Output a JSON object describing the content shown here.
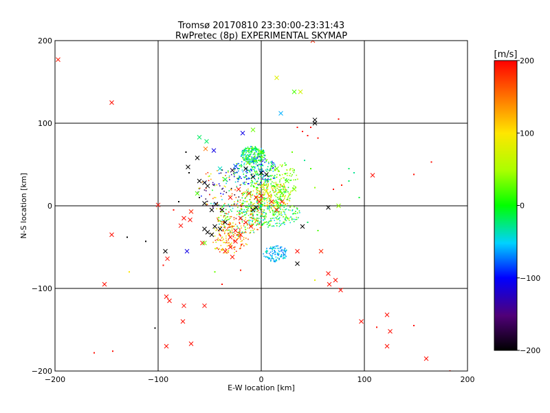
{
  "chart_data": {
    "type": "scatter",
    "title": "Tromsø 20170810 23:30:00-23:31:43",
    "subtitle": "RwPretec (8p) EXPERIMENTAL SKYMAP",
    "xlabel": "E-W location [km]",
    "ylabel": "N-S location [km]",
    "xlim": [
      -200,
      200
    ],
    "ylim": [
      -200,
      200
    ],
    "xticks": [
      -200,
      -100,
      0,
      100,
      200
    ],
    "yticks": [
      -200,
      -100,
      0,
      100,
      200
    ],
    "grid": true,
    "colorbar": {
      "label": "[m/s]",
      "min": -200,
      "max": 200,
      "ticks": [
        -200,
        -100,
        0,
        100,
        200
      ]
    },
    "series": [
      {
        "marker": "cross",
        "points": [
          {
            "x": -197,
            "y": 177,
            "v": 190
          },
          {
            "x": -145,
            "y": 125,
            "v": 195
          },
          {
            "x": 50,
            "y": 200,
            "v": 185
          },
          {
            "x": 15,
            "y": 155,
            "v": 80
          },
          {
            "x": 32,
            "y": 138,
            "v": 20
          },
          {
            "x": 38,
            "y": 138,
            "v": 70
          },
          {
            "x": 19,
            "y": 112,
            "v": -60
          },
          {
            "x": 52,
            "y": 104,
            "v": -200
          },
          {
            "x": 52,
            "y": 100,
            "v": -200
          },
          {
            "x": -18,
            "y": 88,
            "v": -110
          },
          {
            "x": -60,
            "y": 83,
            "v": -20
          },
          {
            "x": -53,
            "y": 78,
            "v": -20
          },
          {
            "x": -54,
            "y": 69,
            "v": 150
          },
          {
            "x": -46,
            "y": 67,
            "v": -110
          },
          {
            "x": -62,
            "y": 58,
            "v": -200
          },
          {
            "x": -71,
            "y": 47,
            "v": -200
          },
          {
            "x": -60,
            "y": 30,
            "v": -200
          },
          {
            "x": -55,
            "y": 28,
            "v": -200
          },
          {
            "x": -52,
            "y": 24,
            "v": -200
          },
          {
            "x": -35,
            "y": 32,
            "v": -10
          },
          {
            "x": -40,
            "y": 45,
            "v": -40
          },
          {
            "x": -28,
            "y": 43,
            "v": -180
          },
          {
            "x": -25,
            "y": 48,
            "v": -80
          },
          {
            "x": -62,
            "y": 15,
            "v": 20
          },
          {
            "x": -55,
            "y": 3,
            "v": -200
          },
          {
            "x": -44,
            "y": 2,
            "v": -200
          },
          {
            "x": -38,
            "y": -5,
            "v": -200
          },
          {
            "x": -48,
            "y": -5,
            "v": -200
          },
          {
            "x": -100,
            "y": 1,
            "v": 195
          },
          {
            "x": -75,
            "y": -15,
            "v": 195
          },
          {
            "x": -69,
            "y": -17,
            "v": 195
          },
          {
            "x": -78,
            "y": -24,
            "v": 195
          },
          {
            "x": -68,
            "y": -7,
            "v": 185
          },
          {
            "x": -55,
            "y": -28,
            "v": -200
          },
          {
            "x": -52,
            "y": -32,
            "v": -200
          },
          {
            "x": -48,
            "y": -35,
            "v": -200
          },
          {
            "x": -45,
            "y": -25,
            "v": -200
          },
          {
            "x": -57,
            "y": -45,
            "v": 190
          },
          {
            "x": -55,
            "y": -45,
            "v": 30
          },
          {
            "x": -40,
            "y": -28,
            "v": -200
          },
          {
            "x": -35,
            "y": -20,
            "v": -200
          },
          {
            "x": -30,
            "y": -38,
            "v": 195
          },
          {
            "x": -25,
            "y": -43,
            "v": 195
          },
          {
            "x": -35,
            "y": -55,
            "v": 190
          },
          {
            "x": -30,
            "y": -50,
            "v": 195
          },
          {
            "x": -25,
            "y": -30,
            "v": 195
          },
          {
            "x": -20,
            "y": -35,
            "v": 195
          },
          {
            "x": -28,
            "y": -62,
            "v": 190
          },
          {
            "x": -20,
            "y": -15,
            "v": 195
          },
          {
            "x": -15,
            "y": -20,
            "v": 195
          },
          {
            "x": -10,
            "y": -25,
            "v": 195
          },
          {
            "x": -5,
            "y": 10,
            "v": 195
          },
          {
            "x": 0,
            "y": 12,
            "v": 195
          },
          {
            "x": 8,
            "y": 12,
            "v": 130
          },
          {
            "x": 5,
            "y": 18,
            "v": 100
          },
          {
            "x": 10,
            "y": 5,
            "v": 190
          },
          {
            "x": -2,
            "y": 5,
            "v": 195
          },
          {
            "x": -8,
            "y": -5,
            "v": -200
          },
          {
            "x": -5,
            "y": -2,
            "v": -200
          },
          {
            "x": -12,
            "y": 15,
            "v": 190
          },
          {
            "x": -22,
            "y": 20,
            "v": 190
          },
          {
            "x": -30,
            "y": 10,
            "v": 195
          },
          {
            "x": -8,
            "y": 35,
            "v": -200
          },
          {
            "x": 0,
            "y": 40,
            "v": -200
          },
          {
            "x": 5,
            "y": 38,
            "v": -200
          },
          {
            "x": -15,
            "y": 45,
            "v": -200
          },
          {
            "x": -13,
            "y": 52,
            "v": 40
          },
          {
            "x": -8,
            "y": 92,
            "v": 30
          },
          {
            "x": 15,
            "y": 45,
            "v": 30
          },
          {
            "x": 25,
            "y": 30,
            "v": 20
          },
          {
            "x": 32,
            "y": 20,
            "v": 40
          },
          {
            "x": 20,
            "y": 15,
            "v": 20
          },
          {
            "x": 20,
            "y": 5,
            "v": 190
          },
          {
            "x": 15,
            "y": -5,
            "v": 195
          },
          {
            "x": 40,
            "y": -25,
            "v": -200
          },
          {
            "x": 35,
            "y": -70,
            "v": -200
          },
          {
            "x": 35,
            "y": -55,
            "v": 195
          },
          {
            "x": 65,
            "y": -2,
            "v": -200
          },
          {
            "x": 75,
            "y": 0,
            "v": 40
          },
          {
            "x": 58,
            "y": -55,
            "v": 185
          },
          {
            "x": 65,
            "y": -82,
            "v": 195
          },
          {
            "x": 72,
            "y": -90,
            "v": 195
          },
          {
            "x": 66,
            "y": -95,
            "v": 195
          },
          {
            "x": 77,
            "y": -102,
            "v": 195
          },
          {
            "x": 108,
            "y": 37,
            "v": 195
          },
          {
            "x": 97,
            "y": -140,
            "v": 195
          },
          {
            "x": 122,
            "y": -132,
            "v": 195
          },
          {
            "x": 125,
            "y": -152,
            "v": 195
          },
          {
            "x": 122,
            "y": -170,
            "v": 195
          },
          {
            "x": 160,
            "y": -185,
            "v": 195
          },
          {
            "x": -93,
            "y": -55,
            "v": -200
          },
          {
            "x": -91,
            "y": -64,
            "v": 195
          },
          {
            "x": -72,
            "y": -55,
            "v": -110
          },
          {
            "x": -145,
            "y": -35,
            "v": 195
          },
          {
            "x": -152,
            "y": -95,
            "v": 195
          },
          {
            "x": -92,
            "y": -110,
            "v": 195
          },
          {
            "x": -89,
            "y": -115,
            "v": 195
          },
          {
            "x": -75,
            "y": -121,
            "v": 195
          },
          {
            "x": -55,
            "y": -121,
            "v": 195
          },
          {
            "x": -76,
            "y": -140,
            "v": 195
          },
          {
            "x": -92,
            "y": -170,
            "v": 195
          },
          {
            "x": -68,
            "y": -167,
            "v": 195
          }
        ]
      },
      {
        "marker": "dot",
        "points": [
          {
            "x": -95,
            "y": -72,
            "v": 195
          },
          {
            "x": -38,
            "y": -95,
            "v": 195
          },
          {
            "x": -20,
            "y": -78,
            "v": 190
          },
          {
            "x": -130,
            "y": -38,
            "v": -200
          },
          {
            "x": -112,
            "y": -43,
            "v": -200
          },
          {
            "x": -128,
            "y": -80,
            "v": 100
          },
          {
            "x": -162,
            "y": -178,
            "v": 195
          },
          {
            "x": -144,
            "y": -176,
            "v": 195
          },
          {
            "x": -103,
            "y": -148,
            "v": -200
          },
          {
            "x": 85,
            "y": 45,
            "v": -20
          },
          {
            "x": 90,
            "y": 40,
            "v": -30
          },
          {
            "x": 85,
            "y": 30,
            "v": -20
          },
          {
            "x": 95,
            "y": 10,
            "v": -10
          },
          {
            "x": 70,
            "y": 20,
            "v": 195
          },
          {
            "x": 78,
            "y": 25,
            "v": 190
          },
          {
            "x": 148,
            "y": 38,
            "v": 195
          },
          {
            "x": 165,
            "y": 53,
            "v": 195
          },
          {
            "x": 148,
            "y": -145,
            "v": 195
          },
          {
            "x": 112,
            "y": -147,
            "v": 195
          },
          {
            "x": 183,
            "y": -200,
            "v": 195
          },
          {
            "x": 52,
            "y": -90,
            "v": 80
          },
          {
            "x": 52,
            "y": 22,
            "v": 40
          },
          {
            "x": 48,
            "y": 95,
            "v": 195
          },
          {
            "x": 40,
            "y": 90,
            "v": 195
          },
          {
            "x": 45,
            "y": 85,
            "v": 195
          },
          {
            "x": 35,
            "y": 95,
            "v": 195
          },
          {
            "x": 55,
            "y": 82,
            "v": 195
          },
          {
            "x": 75,
            "y": 105,
            "v": 195
          },
          {
            "x": -47,
            "y": 0,
            "v": -200
          },
          {
            "x": -60,
            "y": 10,
            "v": -200
          },
          {
            "x": -70,
            "y": 40,
            "v": -200
          },
          {
            "x": -80,
            "y": 5,
            "v": -200
          },
          {
            "x": -73,
            "y": 65,
            "v": -200
          },
          {
            "x": -85,
            "y": -5,
            "v": 195
          },
          {
            "x": -45,
            "y": -80,
            "v": 30
          },
          {
            "x": 45,
            "y": -20,
            "v": -20
          },
          {
            "x": 55,
            "y": -30,
            "v": 20
          },
          {
            "x": 48,
            "y": 45,
            "v": 20
          },
          {
            "x": 42,
            "y": 55,
            "v": -30
          },
          {
            "x": 30,
            "y": 65,
            "v": 30
          }
        ]
      }
    ],
    "clusters": [
      {
        "cx": -8,
        "cy": 62,
        "rx": 12,
        "ry": 10,
        "n": 240,
        "vmin": -70,
        "vmax": 40,
        "seed": 11
      },
      {
        "cx": -6,
        "cy": 42,
        "rx": 22,
        "ry": 18,
        "n": 260,
        "vmin": -120,
        "vmax": 40,
        "seed": 23
      },
      {
        "cx": 5,
        "cy": 12,
        "rx": 24,
        "ry": 18,
        "n": 300,
        "vmin": -20,
        "vmax": 140,
        "seed": 37
      },
      {
        "cx": -20,
        "cy": -15,
        "rx": 24,
        "ry": 22,
        "n": 240,
        "vmin": -60,
        "vmax": 200,
        "seed": 41
      },
      {
        "cx": -32,
        "cy": -40,
        "rx": 20,
        "ry": 18,
        "n": 130,
        "vmin": 60,
        "vmax": 200,
        "seed": 53
      },
      {
        "cx": 8,
        "cy": -10,
        "rx": 30,
        "ry": 16,
        "n": 230,
        "vmin": -60,
        "vmax": 60,
        "seed": 67
      },
      {
        "cx": 14,
        "cy": -58,
        "rx": 12,
        "ry": 10,
        "n": 120,
        "vmin": -80,
        "vmax": -30,
        "seed": 71
      },
      {
        "cx": 22,
        "cy": 30,
        "rx": 14,
        "ry": 22,
        "n": 100,
        "vmin": -10,
        "vmax": 80,
        "seed": 83
      },
      {
        "cx": -40,
        "cy": 20,
        "rx": 22,
        "ry": 24,
        "n": 100,
        "vmin": -200,
        "vmax": 200,
        "seed": 97
      }
    ]
  }
}
